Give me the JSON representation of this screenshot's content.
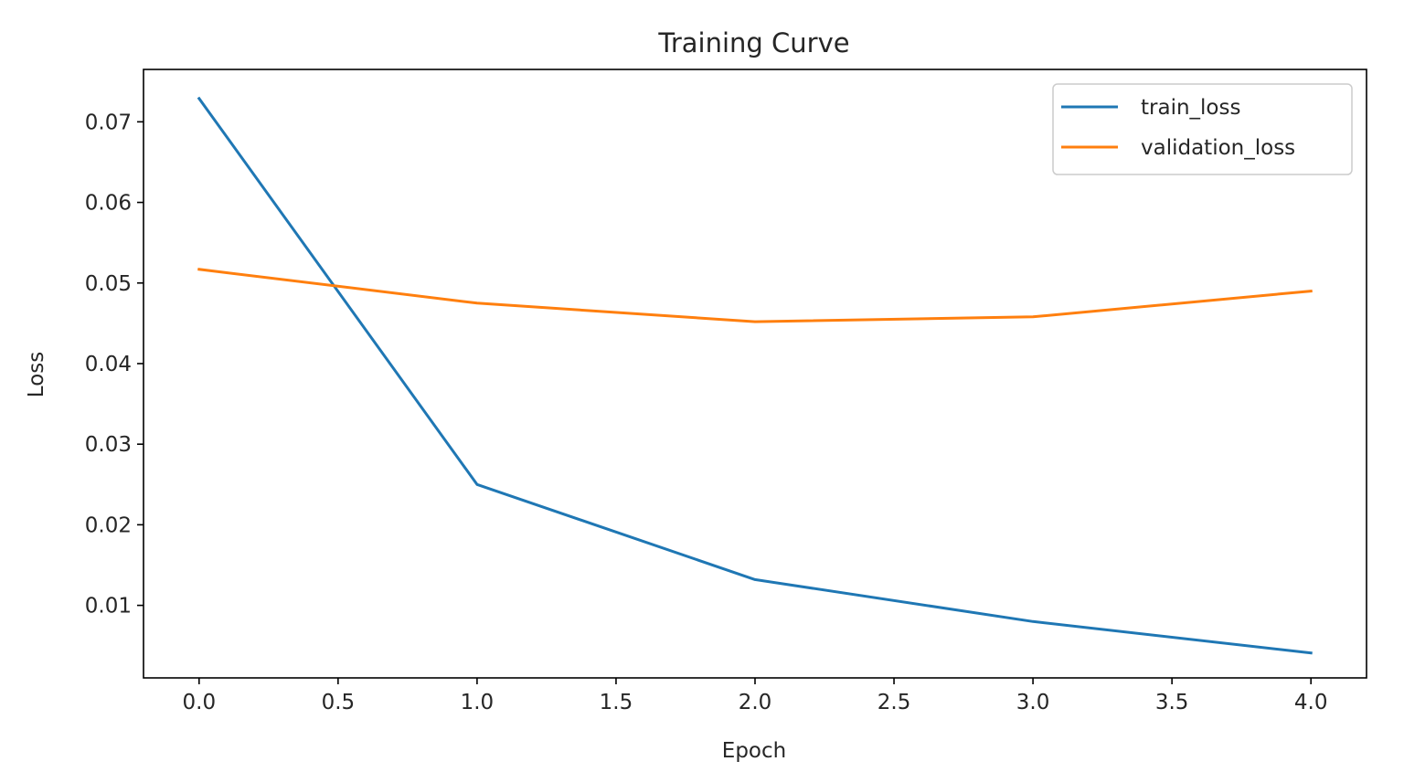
{
  "chart_data": {
    "type": "line",
    "title": "Training Curve",
    "xlabel": "Epoch",
    "ylabel": "Loss",
    "x": [
      0,
      1,
      2,
      3,
      4
    ],
    "series": [
      {
        "name": "train_loss",
        "color": "#1f77b4",
        "values": [
          0.0729,
          0.025,
          0.0132,
          0.008,
          0.0041
        ]
      },
      {
        "name": "validation_loss",
        "color": "#ff7f0e",
        "values": [
          0.0517,
          0.0475,
          0.0452,
          0.0458,
          0.049
        ]
      }
    ],
    "xlim": [
      -0.2,
      4.2
    ],
    "ylim": [
      0.001,
      0.0765
    ],
    "xticks": [
      0.0,
      0.5,
      1.0,
      1.5,
      2.0,
      2.5,
      3.0,
      3.5,
      4.0
    ],
    "xtick_labels": [
      "0.0",
      "0.5",
      "1.0",
      "1.5",
      "2.0",
      "2.5",
      "3.0",
      "3.5",
      "4.0"
    ],
    "yticks": [
      0.01,
      0.02,
      0.03,
      0.04,
      0.05,
      0.06,
      0.07
    ],
    "ytick_labels": [
      "0.01",
      "0.02",
      "0.03",
      "0.04",
      "0.05",
      "0.06",
      "0.07"
    ],
    "grid": false,
    "legend_position": "top-right"
  }
}
